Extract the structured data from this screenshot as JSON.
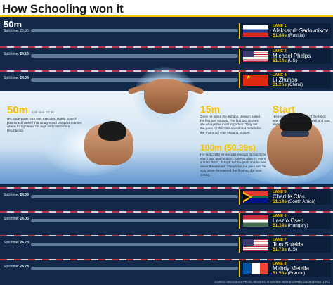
{
  "title": "How Schooling won it",
  "colors": {
    "accent": "#f5c200",
    "pool": "#12294a"
  },
  "marker_50": {
    "label": "50m",
    "split": "Split time: 23.96"
  },
  "lanes_top": [
    {
      "split_label": "",
      "split_value": "",
      "lane": "LANE 1",
      "swimmer": "Aleksandr Sadovnikov",
      "time": "51.84s",
      "country": "(Russia)",
      "flag": "russia-flag-icon"
    },
    {
      "split_label": "Split time: ",
      "split_value": "24.16",
      "lane": "LANE 2",
      "swimmer": "Michael Phelps",
      "time": "51.14s",
      "country": "(US)",
      "flag": "usa-flag-icon"
    },
    {
      "split_label": "Split time: ",
      "split_value": "24.04",
      "lane": "LANE 3",
      "swimmer": "Li Zhuhao",
      "time": "51.26s",
      "country": "(China)",
      "flag": "china-flag-icon"
    }
  ],
  "lanes_bottom": [
    {
      "split_label": "Split time: ",
      "split_value": "24.09",
      "lane": "LANE 5",
      "swimmer": "Chad le Clos",
      "time": "51.14s",
      "country": "(South Africa)",
      "flag": "south-africa-flag-icon"
    },
    {
      "split_label": "Split time: ",
      "split_value": "24.06",
      "lane": "LANE 6",
      "swimmer": "Laszlo Cseh",
      "time": "51.14s",
      "country": "(Hungary)",
      "flag": "hungary-flag-icon"
    },
    {
      "split_label": "Split time: ",
      "split_value": "24.28",
      "lane": "LANE 7",
      "swimmer": "Tom Shields",
      "time": "51.73s",
      "country": "(US)",
      "flag": "usa-flag-icon"
    },
    {
      "split_label": "Split time: ",
      "split_value": "24.24",
      "lane": "LANE 8",
      "swimmer": "Mehdy Metella",
      "time": "51.58s",
      "country": "(France)",
      "flag": "france-flag-icon"
    }
  ],
  "annotations": {
    "m50": {
      "head": "50m",
      "sub": "Split time: 23.96",
      "body": "His underwater turn was executed neatly. Joseph positioned himself in a straight and compact manner, where he tightened his legs and core before resurfacing."
    },
    "m15": {
      "head": "15m",
      "body": "Once he broke the surface, Joseph nailed his first two strokes. The first two strokes are always the most important. They set the pace for the 25m ahead and determine the rhythm of your ensuing strokes."
    },
    "start": {
      "head": "Start",
      "body": "His reaction time (0.63s) off the block was good. Joseph dived in well and was ahead."
    },
    "m100": {
      "head": "100m (50.39s)",
      "body": "His last (35th) stroke was enough to reach the touch pad and he didn't have to glide in. From start to finish, Joseph led the pack and he was never threatened. Joseph led the pack and he was never threatened. He finished the race strong."
    }
  },
  "footer": "SOURCE: ASSOCIATED PRESS, REUTERS, INTERVIEW WITH JOSEPH'S COACH SERGIO LOPEZ"
}
